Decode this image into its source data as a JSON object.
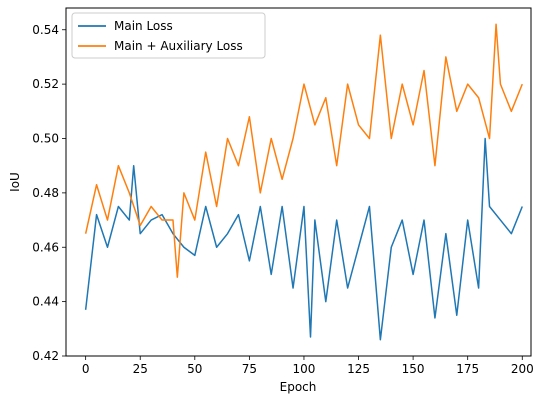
{
  "chart_data": {
    "type": "line",
    "title": "",
    "xlabel": "Epoch",
    "ylabel": "IoU",
    "xlim": [
      -9,
      204
    ],
    "ylim": [
      0.42,
      0.548
    ],
    "xticks": [
      0,
      25,
      50,
      75,
      100,
      125,
      150,
      175,
      200
    ],
    "xtick_labels": [
      "0",
      "25",
      "50",
      "75",
      "100",
      "125",
      "150",
      "175",
      "200"
    ],
    "yticks": [
      0.42,
      0.44,
      0.46,
      0.48,
      0.5,
      0.52,
      0.54
    ],
    "ytick_labels": [
      "0.42",
      "0.44",
      "0.46",
      "0.48",
      "0.50",
      "0.52",
      "0.54"
    ],
    "grid": false,
    "legend_position": "upper-left",
    "series": [
      {
        "name": "Main Loss",
        "color": "#1f77b4",
        "x": [
          0,
          5,
          10,
          15,
          20,
          22,
          25,
          30,
          35,
          40,
          45,
          50,
          55,
          60,
          65,
          70,
          75,
          80,
          85,
          90,
          95,
          100,
          103,
          105,
          110,
          115,
          120,
          125,
          130,
          135,
          140,
          145,
          150,
          155,
          160,
          165,
          170,
          175,
          180,
          183,
          185,
          190,
          195,
          200
        ],
        "values": [
          0.437,
          0.472,
          0.46,
          0.475,
          0.47,
          0.49,
          0.465,
          0.47,
          0.472,
          0.465,
          0.46,
          0.457,
          0.475,
          0.46,
          0.465,
          0.472,
          0.455,
          0.475,
          0.45,
          0.475,
          0.445,
          0.475,
          0.427,
          0.47,
          0.44,
          0.47,
          0.445,
          0.46,
          0.475,
          0.426,
          0.46,
          0.47,
          0.45,
          0.47,
          0.434,
          0.465,
          0.435,
          0.47,
          0.445,
          0.5,
          0.475,
          0.47,
          0.465,
          0.475
        ]
      },
      {
        "name": "Main + Auxiliary Loss",
        "color": "#ff7f0e",
        "x": [
          0,
          5,
          10,
          15,
          20,
          25,
          30,
          35,
          40,
          42,
          45,
          50,
          55,
          60,
          65,
          70,
          75,
          80,
          85,
          90,
          95,
          100,
          105,
          110,
          115,
          120,
          125,
          130,
          135,
          140,
          145,
          150,
          155,
          160,
          165,
          170,
          175,
          180,
          185,
          188,
          190,
          195,
          200
        ],
        "values": [
          0.465,
          0.483,
          0.47,
          0.49,
          0.48,
          0.468,
          0.475,
          0.47,
          0.47,
          0.449,
          0.48,
          0.47,
          0.495,
          0.475,
          0.5,
          0.49,
          0.508,
          0.48,
          0.5,
          0.485,
          0.5,
          0.52,
          0.505,
          0.515,
          0.49,
          0.52,
          0.505,
          0.5,
          0.538,
          0.5,
          0.52,
          0.505,
          0.525,
          0.49,
          0.53,
          0.51,
          0.52,
          0.515,
          0.5,
          0.542,
          0.52,
          0.51,
          0.52
        ]
      }
    ]
  }
}
